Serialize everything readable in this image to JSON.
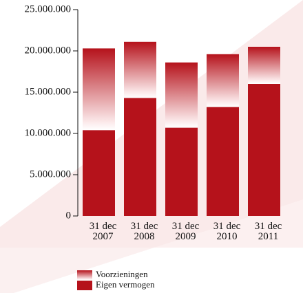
{
  "chart_data": {
    "type": "stacked-bar",
    "categories": [
      "31 dec 2007",
      "31 dec 2008",
      "31 dec 2009",
      "31 dec 2010",
      "31 dec 2011"
    ],
    "series": [
      {
        "name": "Eigen vermogen",
        "color": "#b5121b",
        "values": [
          10400000,
          14300000,
          10700000,
          13200000,
          16000000
        ]
      },
      {
        "name": "Voorzieningen",
        "color": "#b5121b",
        "values": [
          9900000,
          6800000,
          7900000,
          6400000,
          4500000
        ]
      }
    ],
    "ylim": [
      0,
      25000000
    ],
    "yticks": [
      0,
      {
        "value": 5000000,
        "label": "5.000.000"
      },
      {
        "value": 10000000,
        "label": "10.000.000"
      },
      {
        "value": 15000000,
        "label": "15.000.000"
      },
      {
        "value": 20000000,
        "label": "20.000.000"
      },
      {
        "value": 25000000,
        "label": "25.000.000"
      }
    ]
  }
}
